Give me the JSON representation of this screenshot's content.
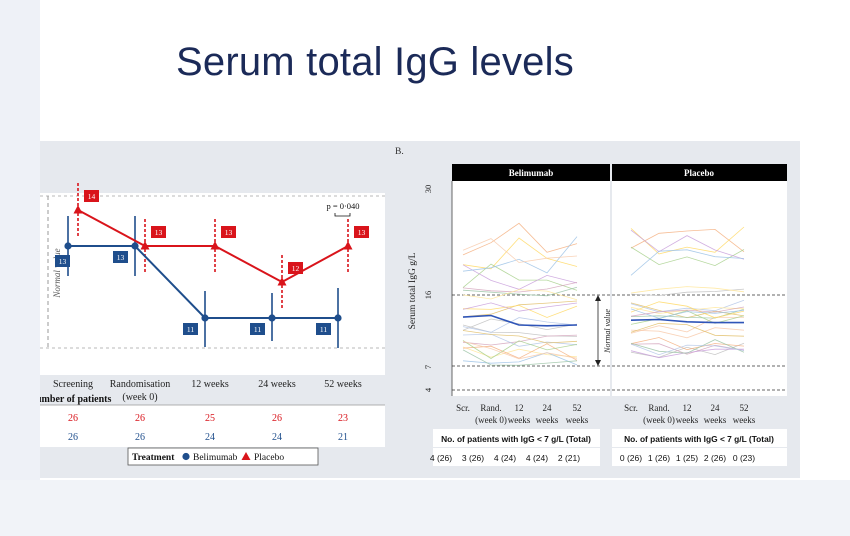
{
  "slide": {
    "title": "Serum total IgG levels"
  },
  "colors": {
    "belimumab": "#1f4e8c",
    "placebo": "#d9141b",
    "title": "#1b2a58",
    "header_bar": "#000000"
  },
  "chart_data": [
    {
      "id": "A",
      "type": "line",
      "categories": [
        "Screening",
        "Randomisation (week 0)",
        "12 weeks",
        "24 weeks",
        "52 weeks"
      ],
      "series": [
        {
          "name": "Belimumab",
          "values": [
            13,
            13,
            11,
            11,
            11
          ],
          "color": "#1f4e8c",
          "marker": "circle"
        },
        {
          "name": "Placebo",
          "values": [
            14,
            13,
            13,
            12,
            13
          ],
          "color": "#d9141b",
          "marker": "triangle"
        }
      ],
      "y_axis_label": "Normal value",
      "annotation": "p = 0·040",
      "patients_header": "Number of patients",
      "patients_header_visible": "umber of patients",
      "patients_counts": {
        "Placebo": [
          "26",
          "26",
          "25",
          "26",
          "23"
        ],
        "Belimumab": [
          "26",
          "26",
          "24",
          "24",
          "21"
        ]
      },
      "legend": {
        "title": "Treatment",
        "items": [
          "Belimumab",
          "Placebo"
        ],
        "placement": "bottom"
      }
    },
    {
      "id": "B",
      "type": "line",
      "panel_label": "B.",
      "facets": [
        "Belimumab",
        "Placebo"
      ],
      "categories": [
        "Scr.",
        "Rand. (week 0)",
        "12 weeks",
        "24 weeks",
        "52 weeks"
      ],
      "ylabel": "Serum total IgG g/L",
      "y_ticks": [
        "4",
        "7",
        "16",
        "30"
      ],
      "ylim": [
        4,
        30
      ],
      "normal_range_label": "Normal value",
      "normal_range": [
        7,
        16
      ],
      "mean_series": {
        "Belimumab": [
          13.2,
          13.4,
          12.2,
          12.1,
          12.2
        ],
        "Placebo": [
          12.8,
          12.9,
          12.6,
          12.5,
          12.5
        ]
      },
      "count_header": "No. of patients with IgG < 7 g/L (Total)",
      "counts": {
        "Belimumab": [
          "4 (26)",
          "3 (26)",
          "4 (24)",
          "4 (24)",
          "2 (21)"
        ],
        "Placebo": [
          "0 (26)",
          "1 (26)",
          "1 (25)",
          "2 (26)",
          "0 (23)"
        ]
      }
    }
  ]
}
